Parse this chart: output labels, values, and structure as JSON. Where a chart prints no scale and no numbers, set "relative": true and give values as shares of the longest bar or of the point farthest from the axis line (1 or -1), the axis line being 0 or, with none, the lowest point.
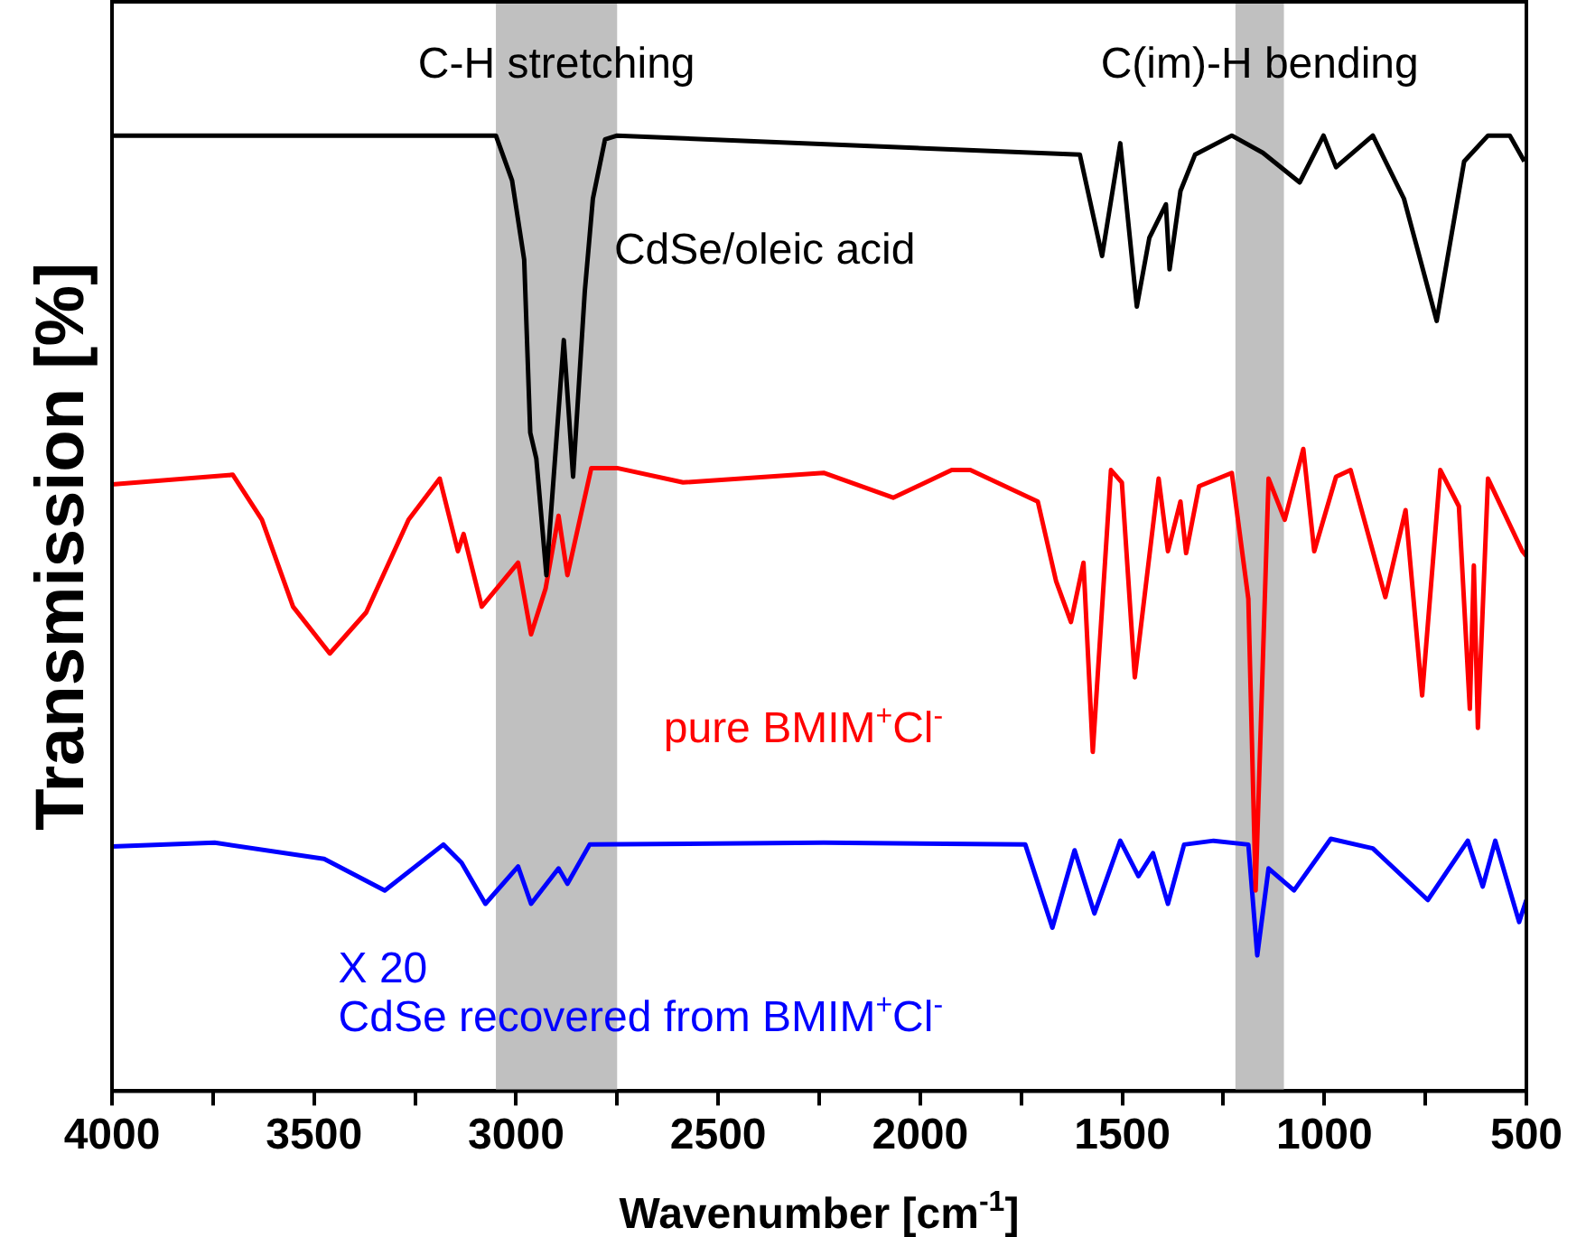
{
  "chart_data": {
    "type": "line",
    "xlabel": "Wavenumber [cm$^{-1}$]",
    "ylabel": "Transmission [%]",
    "relative": true,
    "xlim": [
      4000,
      500
    ],
    "xticks": [
      4000,
      {
        "value": 3750,
        "label": null
      },
      3500,
      {
        "value": 3250,
        "label": null
      },
      3000,
      {
        "value": 2750,
        "label": null
      },
      2500,
      {
        "value": 2250,
        "label": null
      },
      2000,
      {
        "value": 1750,
        "label": null
      },
      1500,
      {
        "value": 1250,
        "label": null
      },
      1000,
      {
        "value": 750,
        "label": null
      },
      500
    ],
    "bands": [
      {
        "axis": "x",
        "from": 3050,
        "to": 2750,
        "label": "C-H stretching",
        "color": "#c0c0c0"
      },
      {
        "axis": "x",
        "from": 1220,
        "to": 1100,
        "label": "C(im)-H bending",
        "color": "#c0c0c0"
      }
    ],
    "annotations": [
      "X 20"
    ],
    "series": [
      {
        "name": "CdSe/oleic acid",
        "color": "#000000",
        "x": [
          4000,
          3050,
          3010,
          2980,
          2965,
          2950,
          2925,
          2882,
          2859,
          2830,
          2810,
          2780,
          2750,
          1605,
          1550,
          1505,
          1464,
          1433,
          1392,
          1383,
          1356,
          1320,
          1229,
          1152,
          1061,
          1002,
          971,
          880,
          803,
          722,
          654,
          595,
          541,
          505
        ],
        "values": [
          1.0,
          1.0,
          0.953,
          0.87,
          0.689,
          0.662,
          0.54,
          0.786,
          0.643,
          0.837,
          0.934,
          0.996,
          1.0,
          0.98,
          0.874,
          0.992,
          0.821,
          0.893,
          0.928,
          0.86,
          0.942,
          0.98,
          1.0,
          0.982,
          0.951,
          1.0,
          0.967,
          1.0,
          0.934,
          0.806,
          0.973,
          1.0,
          1.0,
          0.973
        ]
      },
      {
        "name": "pure BMIM$^{+}$Cl$^{-}$",
        "color": "#ff0000",
        "x": [
          4000,
          3701,
          3629,
          3552,
          3461,
          3371,
          3266,
          3189,
          3144,
          3130,
          3085,
          2995,
          2963,
          2927,
          2895,
          2873,
          2814,
          2750,
          2587,
          2239,
          2067,
          1922,
          1876,
          1709,
          1664,
          1627,
          1596,
          1573,
          1528,
          1501,
          1469,
          1410,
          1387,
          1356,
          1342,
          1310,
          1229,
          1188,
          1170,
          1138,
          1098,
          1052,
          1025,
          971,
          935,
          849,
          799,
          758,
          713,
          667,
          640,
          630,
          620,
          595,
          510,
          500
        ],
        "values": [
          0.635,
          0.645,
          0.598,
          0.507,
          0.458,
          0.501,
          0.598,
          0.641,
          0.565,
          0.583,
          0.507,
          0.553,
          0.478,
          0.526,
          0.602,
          0.54,
          0.652,
          0.652,
          0.637,
          0.647,
          0.621,
          0.65,
          0.65,
          0.617,
          0.534,
          0.491,
          0.553,
          0.355,
          0.65,
          0.637,
          0.433,
          0.641,
          0.565,
          0.617,
          0.563,
          0.633,
          0.647,
          0.515,
          0.21,
          0.641,
          0.598,
          0.672,
          0.565,
          0.643,
          0.65,
          0.517,
          0.608,
          0.414,
          0.65,
          0.612,
          0.4,
          0.55,
          0.38,
          0.641,
          0.565,
          0.56
        ]
      },
      {
        "name": "CdSe recovered from BMIM$^{+}$Cl$^{-}$",
        "color": "#0000ff",
        "x": [
          4000,
          3746,
          3475,
          3325,
          3180,
          3135,
          3076,
          2995,
          2963,
          2895,
          2873,
          2818,
          2239,
          1740,
          1673,
          1618,
          1569,
          1505,
          1460,
          1424,
          1387,
          1347,
          1274,
          1188,
          1166,
          1138,
          1075,
          984,
          880,
          744,
          645,
          608,
          577,
          518,
          500
        ],
        "values": [
          0.256,
          0.26,
          0.243,
          0.21,
          0.258,
          0.239,
          0.196,
          0.235,
          0.196,
          0.233,
          0.217,
          0.258,
          0.26,
          0.258,
          0.171,
          0.252,
          0.186,
          0.262,
          0.225,
          0.249,
          0.196,
          0.258,
          0.262,
          0.258,
          0.142,
          0.233,
          0.21,
          0.264,
          0.254,
          0.2,
          0.262,
          0.214,
          0.262,
          0.177,
          0.2
        ]
      }
    ]
  }
}
